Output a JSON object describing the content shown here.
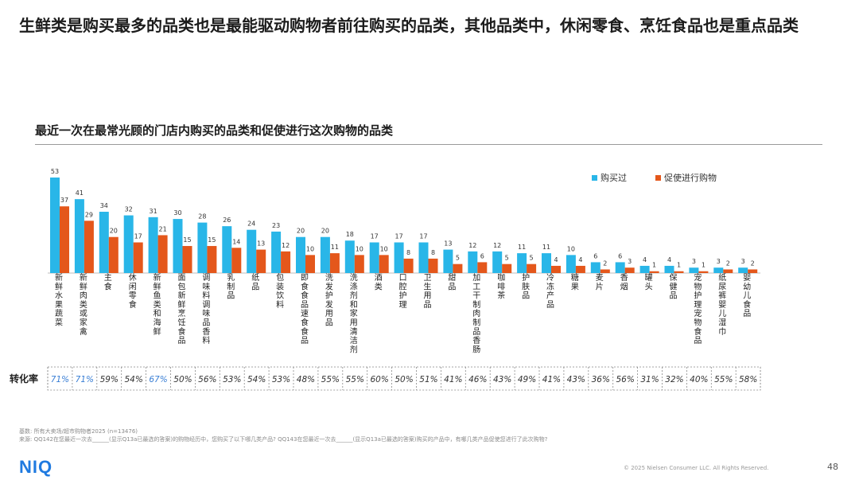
{
  "headline": "生鲜类是购买最多的品类也是最能驱动购物者前往购买的品类，其他品类中，休闲零食、烹饪食品也是重点品类",
  "chart_data": {
    "type": "bar",
    "title": "最近一次在最常光顾的门店内购买的品类和促使进行这次购物的品类",
    "categories": [
      "新鲜水果蔬菜",
      "新鲜肉类或家禽",
      "主食",
      "休闲零食",
      "新鲜鱼类和海鲜",
      "面包、新鲜烹饪食品",
      "调味料、调味品、香料",
      "乳制品",
      "纸品",
      "包装饮料",
      "即食食品、速食食品",
      "洗发护发用品",
      "洗涤剂和家用清洁剂",
      "酒类",
      "口腔护理",
      "卫生用品",
      "甜品",
      "加工、干制肉制品、香肠",
      "咖啡、茶",
      "护肤品",
      "冷冻产品",
      "糖果",
      "麦片",
      "香烟",
      "罐头",
      "保健品",
      "宠物护理、宠物食品",
      "纸尿裤、婴儿湿巾",
      "婴幼儿食品"
    ],
    "category_labels": [
      "新鲜水果蔬菜",
      "新鲜肉类或家禽",
      "主食",
      "休闲零食",
      "新鲜鱼类和海鲜",
      "面包 新鲜烹饪食品",
      "调味料 调味品 香料",
      "乳制品",
      "纸品",
      "包装饮料",
      "即食食品 速食食品",
      "洗发护发用品",
      "洗涤剂和家用清洁剂",
      "酒类",
      "口腔护理",
      "卫生用品",
      "甜品",
      "加工 干制肉制品 香肠",
      "咖啡茶",
      "护肤品",
      "冷冻产品",
      "糖果",
      "麦片",
      "香烟",
      "罐头",
      "保健品",
      "宠物护理 宠物食品",
      "纸尿裤 婴儿湿巾",
      "婴幼儿食品"
    ],
    "series": [
      {
        "name": "购买过",
        "color": "#29b6e8",
        "values": [
          53,
          41,
          34,
          32,
          31,
          30,
          28,
          26,
          24,
          23,
          20,
          20,
          18,
          17,
          17,
          17,
          13,
          12,
          12,
          11,
          11,
          10,
          6,
          6,
          4,
          4,
          3,
          3,
          3
        ]
      },
      {
        "name": "促使进行购物",
        "color": "#e4571b",
        "values": [
          37,
          29,
          20,
          17,
          21,
          15,
          15,
          14,
          13,
          12,
          10,
          11,
          10,
          10,
          8,
          8,
          5,
          6,
          5,
          5,
          4,
          4,
          2,
          3,
          1,
          1,
          1,
          2,
          2
        ]
      }
    ],
    "ylim": [
      0,
      58
    ],
    "legend_position": "top-right",
    "conversion_label": "转化率",
    "conversion": [
      "71%",
      "71%",
      "59%",
      "54%",
      "67%",
      "50%",
      "56%",
      "53%",
      "54%",
      "53%",
      "48%",
      "55%",
      "55%",
      "60%",
      "50%",
      "51%",
      "41%",
      "46%",
      "43%",
      "49%",
      "41%",
      "43%",
      "36%",
      "56%",
      "31%",
      "32%",
      "40%",
      "55%",
      "58%"
    ],
    "highlight_color": "#3a7fd5",
    "highlight_indices": [
      0,
      1,
      4
    ],
    "normal_conversion_color": "#333333"
  },
  "footnotes": {
    "base": "基数: 所有大卖场/超市购物者2025 (n=13476)",
    "source": "来源: QQ142在您最近一次去______(显示Q13a已最选的答案)的购物经历中，您购买了以下哪几类产品? QQ143在您最近一次去______(显示Q13a已最选的答案)购买的产品中，有哪几类产品促使您进行了此次购物?"
  },
  "footer": {
    "logo": "NIQ",
    "copyright": "© 2025 Nielsen Consumer LLC. All Rights Reserved.",
    "page": "48"
  }
}
